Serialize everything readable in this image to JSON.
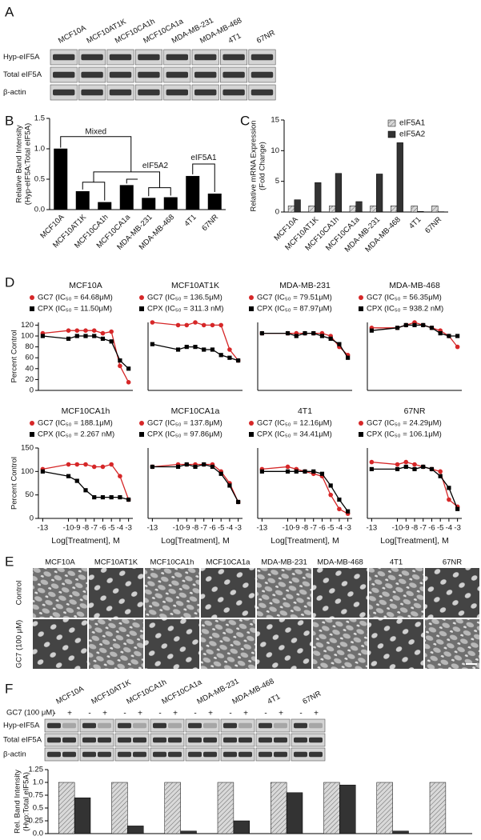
{
  "panel_labels": [
    "A",
    "B",
    "C",
    "D",
    "E",
    "F"
  ],
  "blot_a": {
    "lanes": [
      "MCF10A",
      "MCF10AT1K",
      "MCF10CA1h",
      "MCF10CA1a",
      "MDA-MB-231",
      "MDA-MB-468",
      "4T1",
      "67NR"
    ],
    "rows": [
      "Hyp-eIF5A",
      "Total eIF5A",
      "β-actin"
    ]
  },
  "micrographs": {
    "columns": [
      "MCF10A",
      "MCF10AT1K",
      "MCF10CA1h",
      "MCF10CA1a",
      "MDA-MB-231",
      "MDA-MB-468",
      "4T1",
      "67NR"
    ],
    "rows": [
      "Control",
      "GC7 (100 μM)"
    ]
  },
  "blot_f": {
    "lanes": [
      "MCF10A",
      "MCF10AT1K",
      "MCF10CA1h",
      "MCF10CA1a",
      "MDA-MB-231",
      "MDA-MB-468",
      "4T1",
      "67NR"
    ],
    "treatment_label": "GC7 (100 μM)",
    "treatment": [
      "-",
      "+"
    ],
    "rows": [
      "Hyp-eIF5A",
      "Total eIF5A",
      "β-actin"
    ]
  },
  "chart_data": [
    {
      "type": "bar",
      "ylabel": [
        "Relative Band Intensity",
        "(Hyp-eIF5A:Total eIF5A)"
      ],
      "categories": [
        "MCF10A",
        "MCF10AT1K",
        "MCF10CA1h",
        "MCF10CA1a",
        "MDA-MB-231",
        "MDA-MB-468",
        "4T1",
        "67NR"
      ],
      "values": [
        1.0,
        0.3,
        0.12,
        0.4,
        0.19,
        0.2,
        0.55,
        0.26
      ],
      "color": "#000000",
      "ylim": [
        0,
        1.5
      ],
      "yticks": [
        {
          "value": 0,
          "label": "0.0"
        },
        0.5,
        {
          "value": 1,
          "label": "1.0"
        },
        1.5
      ],
      "annotations": [
        "Mixed",
        "eIF5A2",
        "eIF5A1"
      ]
    },
    {
      "type": "bar",
      "ylabel": [
        "Relative mRNA Expression",
        "(Fold Change)"
      ],
      "categories": [
        "MCF10A",
        "MCF10AT1K",
        "MCF10CA1h",
        "MCF10CA1a",
        "MDA-MB-231",
        "MDA-MB-468",
        "4T1",
        "67NR"
      ],
      "series": [
        {
          "name": "eIF5A1",
          "color": "#d9d9d9",
          "pattern": "hatch",
          "values": [
            1,
            1,
            1,
            1,
            1,
            1,
            1,
            1
          ]
        },
        {
          "name": "eIF5A2",
          "color": "#333333",
          "values": [
            2,
            4.8,
            6.3,
            1.7,
            6.2,
            11.3,
            0.1,
            0.05
          ]
        }
      ],
      "ylim": [
        0,
        15
      ],
      "yticks": [
        0,
        5,
        10,
        15
      ],
      "legend": "upper-right"
    },
    {
      "type": "line",
      "title": "MCF10A",
      "ylabel": [
        "Percent Control"
      ],
      "x": [
        -13,
        -10,
        -9,
        -8,
        -7,
        -6,
        -5,
        -4,
        -3
      ],
      "xlim": [
        -13.5,
        -2.5
      ],
      "ylim": [
        0,
        125
      ],
      "yticks": [
        0,
        20,
        40,
        60,
        80,
        100,
        120
      ],
      "series": [
        {
          "name": "GC7 (IC₅₀ = 64.68μM)",
          "color": "#d62728",
          "marker": "circle",
          "values": [
            105,
            110,
            110,
            110,
            110,
            105,
            108,
            45,
            15
          ]
        },
        {
          "name": "CPX (IC₅₀ = 11.50μM)",
          "color": "#000000",
          "marker": "square",
          "values": [
            100,
            95,
            100,
            100,
            100,
            95,
            90,
            55,
            40
          ]
        }
      ]
    },
    {
      "type": "line",
      "title": "MCF10AT1K",
      "x": [
        -13,
        -10,
        -9,
        -8,
        -7,
        -6,
        -5,
        -4,
        -3
      ],
      "xlim": [
        -13.5,
        -2.5
      ],
      "ylim": [
        0,
        125
      ],
      "series": [
        {
          "name": "GC7 (IC₅₀ = 136.5μM)",
          "color": "#d62728",
          "marker": "circle",
          "values": [
            125,
            120,
            120,
            125,
            120,
            120,
            120,
            75,
            55
          ]
        },
        {
          "name": "CPX (IC₅₀ = 311.3 nM)",
          "color": "#000000",
          "marker": "square",
          "values": [
            85,
            75,
            80,
            80,
            75,
            75,
            65,
            60,
            55
          ]
        }
      ]
    },
    {
      "type": "line",
      "title": "MDA-MB-231",
      "x": [
        -13,
        -10,
        -9,
        -8,
        -7,
        -6,
        -5,
        -4,
        -3
      ],
      "xlim": [
        -13.5,
        -2.5
      ],
      "ylim": [
        0,
        125
      ],
      "series": [
        {
          "name": "GC7 (IC₅₀ = 79.51μM)",
          "color": "#d62728",
          "marker": "circle",
          "values": [
            105,
            105,
            105,
            105,
            105,
            105,
            100,
            80,
            65
          ]
        },
        {
          "name": "CPX (IC₅₀ = 87.97μM)",
          "color": "#000000",
          "marker": "square",
          "values": [
            105,
            105,
            100,
            105,
            105,
            100,
            95,
            85,
            60
          ]
        }
      ]
    },
    {
      "type": "line",
      "title": "MDA-MB-468",
      "x": [
        -13,
        -10,
        -9,
        -8,
        -7,
        -6,
        -5,
        -4,
        -3
      ],
      "xlim": [
        -13.5,
        -2.5
      ],
      "ylim": [
        0,
        125
      ],
      "series": [
        {
          "name": "GC7 (IC₅₀ = 56.35μM)",
          "color": "#d62728",
          "marker": "circle",
          "values": [
            115,
            115,
            120,
            125,
            120,
            115,
            110,
            100,
            80
          ]
        },
        {
          "name": "CPX (IC₅₀ = 938.2 nM)",
          "color": "#000000",
          "marker": "square",
          "values": [
            110,
            115,
            120,
            120,
            120,
            115,
            105,
            100,
            100
          ]
        }
      ]
    },
    {
      "type": "line",
      "title": "MCF10CA1h",
      "ylabel": [
        "Percent Control"
      ],
      "xlabel": "Log[Treatment], M",
      "x": [
        -13,
        -10,
        -9,
        -8,
        -7,
        -6,
        -5,
        -4,
        -3
      ],
      "xlim": [
        -13.5,
        -2.5
      ],
      "ylim": [
        0,
        150
      ],
      "yticks": [
        0,
        50,
        100,
        150
      ],
      "xticks": [
        -13,
        -10,
        -9,
        -8,
        -7,
        -6,
        -5,
        -4,
        -3
      ],
      "series": [
        {
          "name": "GC7 (IC₅₀ = 188.1μM)",
          "color": "#d62728",
          "marker": "circle",
          "values": [
            105,
            115,
            115,
            115,
            110,
            110,
            115,
            90,
            40
          ]
        },
        {
          "name": "CPX (IC₅₀ = 2.267 nM)",
          "color": "#000000",
          "marker": "square",
          "values": [
            100,
            90,
            80,
            60,
            45,
            45,
            45,
            45,
            40
          ]
        }
      ]
    },
    {
      "type": "line",
      "title": "MCF10CA1a",
      "xlabel": "Log[Treatment], M",
      "x": [
        -13,
        -10,
        -9,
        -8,
        -7,
        -6,
        -5,
        -4,
        -3
      ],
      "xlim": [
        -13.5,
        -2.5
      ],
      "ylim": [
        0,
        150
      ],
      "xticks": [
        -13,
        -10,
        -9,
        -8,
        -7,
        -6,
        -5,
        -4,
        -3
      ],
      "series": [
        {
          "name": "GC7 (IC₅₀ = 137.8μM)",
          "color": "#d62728",
          "marker": "circle",
          "values": [
            110,
            115,
            115,
            115,
            115,
            115,
            100,
            75,
            35
          ]
        },
        {
          "name": "CPX (IC₅₀ = 97.86μM)",
          "color": "#000000",
          "marker": "square",
          "values": [
            110,
            110,
            115,
            110,
            115,
            110,
            95,
            70,
            35
          ]
        }
      ]
    },
    {
      "type": "line",
      "title": "4T1",
      "xlabel": "Log[Treatment], M",
      "x": [
        -13,
        -10,
        -9,
        -8,
        -7,
        -6,
        -5,
        -4,
        -3
      ],
      "xlim": [
        -13.5,
        -2.5
      ],
      "ylim": [
        0,
        150
      ],
      "xticks": [
        -13,
        -10,
        -9,
        -8,
        -7,
        -6,
        -5,
        -4,
        -3
      ],
      "series": [
        {
          "name": "GC7 (IC₅₀ = 12.16μM)",
          "color": "#d62728",
          "marker": "circle",
          "values": [
            105,
            110,
            105,
            100,
            95,
            90,
            50,
            20,
            10
          ]
        },
        {
          "name": "CPX (IC₅₀ = 34.41μM)",
          "color": "#000000",
          "marker": "square",
          "values": [
            100,
            100,
            100,
            100,
            100,
            95,
            70,
            40,
            15
          ]
        }
      ]
    },
    {
      "type": "line",
      "title": "67NR",
      "xlabel": "Log[Treatment], M",
      "x": [
        -13,
        -10,
        -9,
        -8,
        -7,
        -6,
        -5,
        -4,
        -3
      ],
      "xlim": [
        -13.5,
        -2.5
      ],
      "ylim": [
        0,
        150
      ],
      "xticks": [
        -13,
        -10,
        -9,
        -8,
        -7,
        -6,
        -5,
        -4,
        -3
      ],
      "series": [
        {
          "name": "GC7 (IC₅₀ = 24.29μM)",
          "color": "#d62728",
          "marker": "circle",
          "values": [
            120,
            115,
            120,
            115,
            110,
            105,
            100,
            40,
            25
          ]
        },
        {
          "name": "CPX (IC₅₀ = 106.1μM)",
          "color": "#000000",
          "marker": "square",
          "values": [
            105,
            105,
            110,
            105,
            110,
            105,
            90,
            65,
            20
          ]
        }
      ]
    },
    {
      "type": "bar",
      "ylabel": [
        "Rel. Band Intensity",
        "(Hyp:Total eIF5A)"
      ],
      "series": [
        {
          "color": "#d9d9d9",
          "pattern": "hatch",
          "values": [
            1,
            1,
            1,
            1,
            1,
            1,
            1,
            1
          ]
        },
        {
          "color": "#333333",
          "values": [
            0.7,
            0.15,
            0.05,
            0.25,
            0.8,
            0.95,
            0.05,
            0
          ]
        }
      ],
      "ylim": [
        0,
        1.25
      ],
      "yticks": [
        {
          "value": 0,
          "label": "0.0"
        },
        0.25,
        0.5,
        0.75,
        {
          "value": 1,
          "label": "1.0"
        },
        1.25
      ]
    }
  ]
}
